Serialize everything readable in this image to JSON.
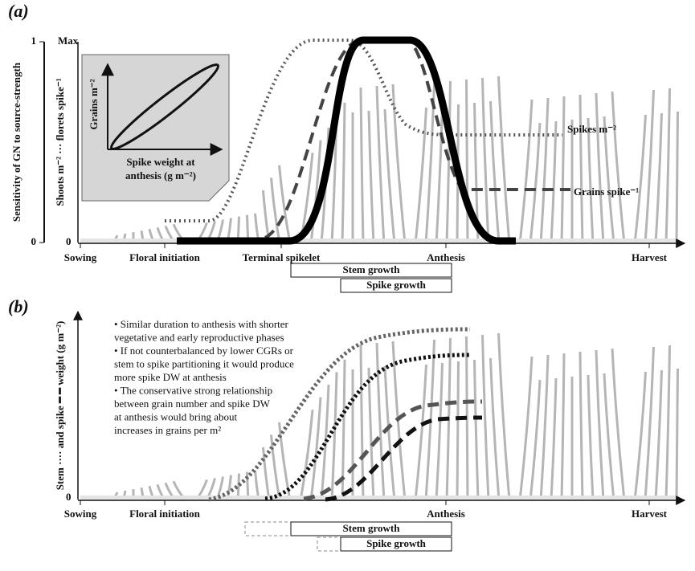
{
  "panel_a": {
    "label": "(a)",
    "left_axis": {
      "label": "Sensitivity of GN to source-strength",
      "top": "1",
      "bottom": "0"
    },
    "right_axis": {
      "top": "Max",
      "label": "Shoots m⁻² ··· florets spike⁻¹",
      "bottom": "0"
    },
    "inset": {
      "y_label": "Grains m⁻²",
      "x_label": [
        "Spike weight at",
        "anthesis (g m⁻²)"
      ]
    },
    "curve_labels": [
      "Spikes m⁻²",
      "Grains spike⁻¹"
    ],
    "stages": [
      "Sowing",
      "Floral initiation",
      "Terminal spikelet",
      "Anthesis",
      "Harvest"
    ],
    "bars": [
      "Stem growth",
      "Spike growth"
    ]
  },
  "panel_b": {
    "label": "(b)",
    "y_axis": {
      "label": "Stem ···· and spike ━ ━ weight (g m⁻²)",
      "bottom": "0"
    },
    "bullets": [
      [
        "• Similar duration to anthesis with shorter",
        "vegetative and early reproductive phases"
      ],
      [
        "• If not counterbalanced by lower CGRs or",
        "stem to spike partitioning it would produce",
        "more spike DW at anthesis"
      ],
      [
        "• The conservative strong relationship",
        "between grain number and spike DW",
        "at anthesis would bring about",
        "increases in grains per m²"
      ]
    ],
    "stages": [
      "Sowing",
      "Floral initiation",
      "Anthesis",
      "Harvest"
    ],
    "bars": [
      "Stem growth",
      "Spike growth"
    ]
  }
}
